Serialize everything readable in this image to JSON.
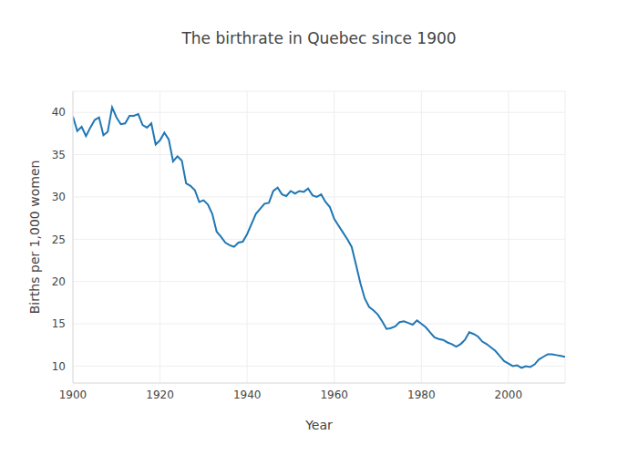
{
  "chart_data": {
    "type": "line",
    "title": "The birthrate in Quebec since 1900",
    "x_label": "Year",
    "y_label": "Births per 1,000 women",
    "x": [
      1900,
      1901,
      1902,
      1903,
      1904,
      1905,
      1906,
      1907,
      1908,
      1909,
      1910,
      1911,
      1912,
      1913,
      1914,
      1915,
      1916,
      1917,
      1918,
      1919,
      1920,
      1921,
      1922,
      1923,
      1924,
      1925,
      1926,
      1927,
      1928,
      1929,
      1930,
      1931,
      1932,
      1933,
      1934,
      1935,
      1936,
      1937,
      1938,
      1939,
      1940,
      1941,
      1942,
      1943,
      1944,
      1945,
      1946,
      1947,
      1948,
      1949,
      1950,
      1951,
      1952,
      1953,
      1954,
      1955,
      1956,
      1957,
      1958,
      1959,
      1960,
      1961,
      1962,
      1963,
      1964,
      1965,
      1966,
      1967,
      1968,
      1969,
      1970,
      1971,
      1972,
      1973,
      1974,
      1975,
      1976,
      1977,
      1978,
      1979,
      1980,
      1981,
      1982,
      1983,
      1984,
      1985,
      1986,
      1987,
      1988,
      1989,
      1990,
      1991,
      1992,
      1993,
      1994,
      1995,
      1996,
      1997,
      1998,
      1999,
      2000,
      2001,
      2002,
      2003,
      2004,
      2005,
      2006,
      2007,
      2008,
      2009,
      2010,
      2011,
      2012,
      2013
    ],
    "values": [
      39.5,
      37.8,
      38.3,
      37.2,
      38.2,
      39.1,
      39.4,
      37.3,
      37.7,
      40.6,
      39.4,
      38.6,
      38.7,
      39.6,
      39.6,
      39.8,
      38.5,
      38.2,
      38.7,
      36.2,
      36.7,
      37.6,
      36.8,
      34.2,
      34.8,
      34.3,
      31.6,
      31.3,
      30.8,
      29.4,
      29.6,
      29.1,
      28.0,
      25.9,
      25.3,
      24.6,
      24.3,
      24.1,
      24.6,
      24.7,
      25.6,
      26.8,
      28.0,
      28.6,
      29.2,
      29.3,
      30.7,
      31.1,
      30.3,
      30.1,
      30.7,
      30.4,
      30.7,
      30.6,
      31.0,
      30.2,
      30.0,
      30.3,
      29.4,
      28.8,
      27.4,
      26.6,
      25.8,
      25.0,
      24.1,
      22.0,
      19.8,
      18.0,
      17.0,
      16.6,
      16.1,
      15.3,
      14.4,
      14.5,
      14.7,
      15.2,
      15.3,
      15.1,
      14.9,
      15.4,
      15.0,
      14.6,
      14.0,
      13.4,
      13.2,
      13.1,
      12.8,
      12.6,
      12.3,
      12.6,
      13.1,
      14.0,
      13.8,
      13.5,
      12.9,
      12.6,
      12.2,
      11.8,
      11.2,
      10.6,
      10.3,
      10.0,
      10.1,
      9.8,
      10.0,
      9.9,
      10.2,
      10.8,
      11.1,
      11.4,
      11.4,
      11.3,
      11.2,
      11.1
    ],
    "color": "#1f77b4",
    "xlim": [
      1900,
      2013
    ],
    "xticks": [
      1900,
      1920,
      1940,
      1960,
      1980,
      2000
    ],
    "ylim": [
      8,
      42.5
    ],
    "yticks": [
      10,
      15,
      20,
      25,
      30,
      35,
      40
    ],
    "grid": true
  }
}
